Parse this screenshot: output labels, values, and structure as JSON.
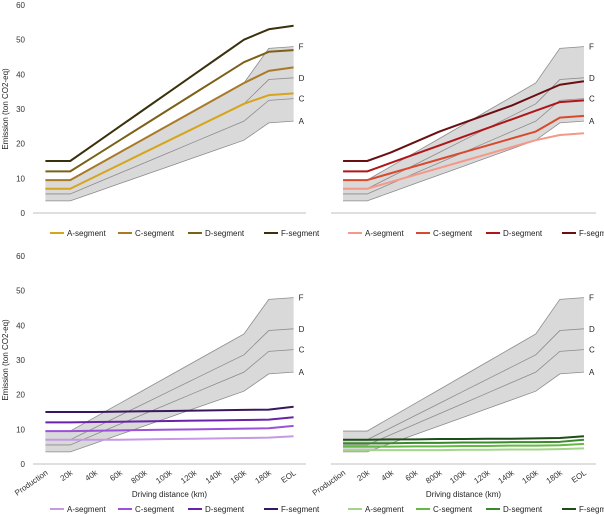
{
  "chart_data": [
    {
      "type": "line",
      "panel": "top-left",
      "categories": [
        "Production",
        "20k",
        "40k",
        "60k",
        "800k",
        "100k",
        "120k",
        "140k",
        "160k",
        "180k",
        "EOL"
      ],
      "ylabel": "Emission (ton CO2-eq)",
      "xlabel": "",
      "ylim": [
        0,
        60
      ],
      "yticks": [
        0,
        10,
        20,
        30,
        40,
        50,
        60
      ],
      "show_xticks": false,
      "range_band": {
        "lower": [
          3.5,
          3.5,
          6,
          8.5,
          11,
          13.5,
          16,
          18.5,
          21,
          26,
          26.5
        ],
        "upper": [
          9.5,
          9.5,
          13.5,
          17.5,
          21.5,
          25.5,
          29.5,
          33.5,
          37.5,
          47.5,
          48
        ]
      },
      "reference_lines": [
        {
          "label": "A",
          "values": [
            3.5,
            3.5,
            6,
            8.5,
            11,
            13.5,
            16,
            18.5,
            21,
            26,
            26.5
          ]
        },
        {
          "label": "C",
          "values": [
            5.5,
            5.5,
            8.5,
            11.5,
            14.5,
            17.5,
            20.5,
            23.5,
            26.5,
            32.5,
            33
          ]
        },
        {
          "label": "D",
          "values": [
            7,
            7,
            10.5,
            14,
            17.5,
            21,
            24.5,
            28,
            31.5,
            38.5,
            39
          ]
        },
        {
          "label": "F",
          "values": [
            9.5,
            9.5,
            13.5,
            17.5,
            21.5,
            25.5,
            29.5,
            33.5,
            37.5,
            47.5,
            48
          ]
        }
      ],
      "series": [
        {
          "name": "A-segment",
          "color": "#d6a51c",
          "values": [
            7,
            7,
            10.5,
            14,
            17.5,
            21,
            24.5,
            28,
            31.5,
            34,
            34.5
          ]
        },
        {
          "name": "C-segment",
          "color": "#a87a28",
          "values": [
            9.5,
            9.5,
            13.5,
            17.5,
            21.5,
            25.5,
            29.5,
            33.5,
            37.5,
            41,
            42
          ]
        },
        {
          "name": "D-segment",
          "color": "#7b6118",
          "values": [
            12,
            12,
            16.5,
            21,
            25.5,
            30,
            34.5,
            39,
            43.5,
            46.5,
            47
          ]
        },
        {
          "name": "F-segment",
          "color": "#3b300c",
          "values": [
            15,
            15,
            20,
            25,
            30,
            35,
            40,
            45,
            50,
            53,
            54
          ]
        }
      ]
    },
    {
      "type": "line",
      "panel": "top-right",
      "categories": [
        "Production",
        "20k",
        "40k",
        "60k",
        "800k",
        "100k",
        "120k",
        "140k",
        "160k",
        "180k",
        "EOL"
      ],
      "ylabel": "",
      "xlabel": "",
      "ylim": [
        0,
        60
      ],
      "yticks": [],
      "show_xticks": false,
      "range_band": {
        "lower": [
          3.5,
          3.5,
          6,
          8.5,
          11,
          13.5,
          16,
          18.5,
          21,
          26,
          26.5
        ],
        "upper": [
          9.5,
          9.5,
          13.5,
          17.5,
          21.5,
          25.5,
          29.5,
          33.5,
          37.5,
          47.5,
          48
        ]
      },
      "reference_lines": [
        {
          "label": "A",
          "values": [
            3.5,
            3.5,
            6,
            8.5,
            11,
            13.5,
            16,
            18.5,
            21,
            26,
            26.5
          ]
        },
        {
          "label": "C",
          "values": [
            5.5,
            5.5,
            8.5,
            11.5,
            14.5,
            17.5,
            20.5,
            23.5,
            26.5,
            32.5,
            33
          ]
        },
        {
          "label": "D",
          "values": [
            7,
            7,
            10.5,
            14,
            17.5,
            21,
            24.5,
            28,
            31.5,
            38.5,
            39
          ]
        },
        {
          "label": "F",
          "values": [
            9.5,
            9.5,
            13.5,
            17.5,
            21.5,
            25.5,
            29.5,
            33.5,
            37.5,
            47.5,
            48
          ]
        }
      ],
      "series": [
        {
          "name": "A-segment",
          "color": "#f4998a",
          "values": [
            7,
            7,
            9,
            11,
            13,
            15,
            17,
            19,
            21,
            22.5,
            23
          ]
        },
        {
          "name": "C-segment",
          "color": "#d9492c",
          "values": [
            9.5,
            9.5,
            11.5,
            13.5,
            15.5,
            17.5,
            19.5,
            21.5,
            23.5,
            27.5,
            28
          ]
        },
        {
          "name": "D-segment",
          "color": "#b0151a",
          "values": [
            12,
            12,
            14.5,
            17,
            19.5,
            22,
            24.5,
            27,
            29.5,
            32,
            32.5
          ]
        },
        {
          "name": "F-segment",
          "color": "#6b0e12",
          "values": [
            15,
            15,
            17.5,
            20.5,
            23.5,
            26,
            28.5,
            31,
            34,
            37,
            38
          ]
        }
      ]
    },
    {
      "type": "line",
      "panel": "bottom-left",
      "categories": [
        "Production",
        "20k",
        "40k",
        "60k",
        "800k",
        "100k",
        "120k",
        "140k",
        "160k",
        "180k",
        "EOL"
      ],
      "ylabel": "Emission (ton CO2-eq)",
      "xlabel": "Driving distance (km)",
      "ylim": [
        0,
        60
      ],
      "yticks": [
        0,
        10,
        20,
        30,
        40,
        50,
        60
      ],
      "show_xticks": true,
      "range_band": {
        "lower": [
          3.5,
          3.5,
          6,
          8.5,
          11,
          13.5,
          16,
          18.5,
          21,
          26,
          26.5
        ],
        "upper": [
          9.5,
          9.5,
          13.5,
          17.5,
          21.5,
          25.5,
          29.5,
          33.5,
          37.5,
          47.5,
          48
        ]
      },
      "reference_lines": [
        {
          "label": "A",
          "values": [
            3.5,
            3.5,
            6,
            8.5,
            11,
            13.5,
            16,
            18.5,
            21,
            26,
            26.5
          ]
        },
        {
          "label": "C",
          "values": [
            5.5,
            5.5,
            8.5,
            11.5,
            14.5,
            17.5,
            20.5,
            23.5,
            26.5,
            32.5,
            33
          ]
        },
        {
          "label": "D",
          "values": [
            7,
            7,
            10.5,
            14,
            17.5,
            21,
            24.5,
            28,
            31.5,
            38.5,
            39
          ]
        },
        {
          "label": "F",
          "values": [
            9.5,
            9.5,
            13.5,
            17.5,
            21.5,
            25.5,
            29.5,
            33.5,
            37.5,
            47.5,
            48
          ]
        }
      ],
      "series": [
        {
          "name": "A-segment",
          "color": "#c49ae6",
          "values": [
            7,
            7,
            7,
            7,
            7.1,
            7.2,
            7.3,
            7.4,
            7.5,
            7.6,
            8
          ]
        },
        {
          "name": "C-segment",
          "color": "#9b52d9",
          "values": [
            9.5,
            9.5,
            9.6,
            9.7,
            9.8,
            9.9,
            10,
            10.1,
            10.2,
            10.3,
            11
          ]
        },
        {
          "name": "D-segment",
          "color": "#6a22a8",
          "values": [
            12,
            12,
            12.1,
            12.2,
            12.3,
            12.4,
            12.5,
            12.6,
            12.7,
            12.8,
            13.5
          ]
        },
        {
          "name": "F-segment",
          "color": "#3a1560",
          "values": [
            15,
            15,
            15,
            15.1,
            15.2,
            15.3,
            15.4,
            15.5,
            15.6,
            15.7,
            16.5
          ]
        }
      ]
    },
    {
      "type": "line",
      "panel": "bottom-right",
      "categories": [
        "Production",
        "20k",
        "40k",
        "60k",
        "800k",
        "100k",
        "120k",
        "140k",
        "160k",
        "180k",
        "EOL"
      ],
      "ylabel": "",
      "xlabel": "Driving distance (km)",
      "ylim": [
        0,
        60
      ],
      "yticks": [],
      "show_xticks": true,
      "range_band": {
        "lower": [
          3.5,
          3.5,
          6,
          8.5,
          11,
          13.5,
          16,
          18.5,
          21,
          26,
          26.5
        ],
        "upper": [
          9.5,
          9.5,
          13.5,
          17.5,
          21.5,
          25.5,
          29.5,
          33.5,
          37.5,
          47.5,
          48
        ]
      },
      "reference_lines": [
        {
          "label": "A",
          "values": [
            3.5,
            3.5,
            6,
            8.5,
            11,
            13.5,
            16,
            18.5,
            21,
            26,
            26.5
          ]
        },
        {
          "label": "C",
          "values": [
            5.5,
            5.5,
            8.5,
            11.5,
            14.5,
            17.5,
            20.5,
            23.5,
            26.5,
            32.5,
            33
          ]
        },
        {
          "label": "D",
          "values": [
            7,
            7,
            10.5,
            14,
            17.5,
            21,
            24.5,
            28,
            31.5,
            38.5,
            39
          ]
        },
        {
          "label": "F",
          "values": [
            9.5,
            9.5,
            13.5,
            17.5,
            21.5,
            25.5,
            29.5,
            33.5,
            37.5,
            47.5,
            48
          ]
        }
      ],
      "series": [
        {
          "name": "A-segment",
          "color": "#a3d48a",
          "values": [
            4,
            4,
            4,
            4,
            4,
            4.1,
            4.1,
            4.2,
            4.2,
            4.3,
            4.5
          ]
        },
        {
          "name": "C-segment",
          "color": "#66b845",
          "values": [
            5,
            5,
            5,
            5.1,
            5.1,
            5.2,
            5.2,
            5.3,
            5.3,
            5.4,
            5.8
          ]
        },
        {
          "name": "D-segment",
          "color": "#3a8a2c",
          "values": [
            6,
            6,
            6,
            6.1,
            6.1,
            6.2,
            6.2,
            6.3,
            6.3,
            6.4,
            7
          ]
        },
        {
          "name": "F-segment",
          "color": "#1e4d18",
          "values": [
            7,
            7,
            7.1,
            7.1,
            7.2,
            7.2,
            7.3,
            7.3,
            7.4,
            7.5,
            8
          ]
        }
      ]
    }
  ],
  "colors": {
    "band_fill": "#d9d9d9",
    "band_edge": "#8c8c8c",
    "axis": "#bfbfbf",
    "text": "#222222"
  }
}
